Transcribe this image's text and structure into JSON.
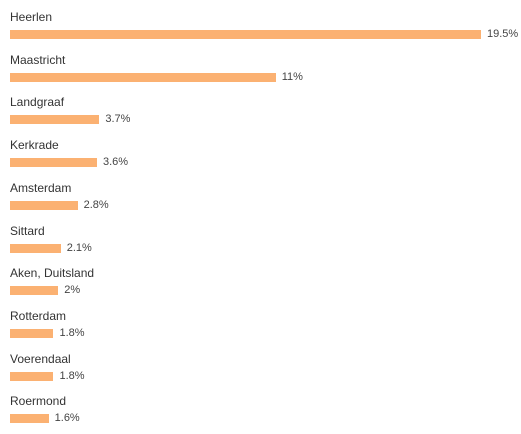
{
  "chart_data": {
    "type": "bar",
    "orientation": "horizontal",
    "categories": [
      "Heerlen",
      "Maastricht",
      "Landgraaf",
      "Kerkrade",
      "Amsterdam",
      "Sittard",
      "Aken, Duitsland",
      "Rotterdam",
      "Voerendaal",
      "Roermond"
    ],
    "values": [
      19.5,
      11,
      3.7,
      3.6,
      2.8,
      2.1,
      2,
      1.8,
      1.8,
      1.6
    ],
    "value_labels": [
      "19.5%",
      "11%",
      "3.7%",
      "3.6%",
      "2.8%",
      "2.1%",
      "2%",
      "1.8%",
      "1.8%",
      "1.6%"
    ],
    "bar_color": "#fbb172",
    "title": "",
    "xlabel": "",
    "ylabel": "",
    "grid": false
  }
}
